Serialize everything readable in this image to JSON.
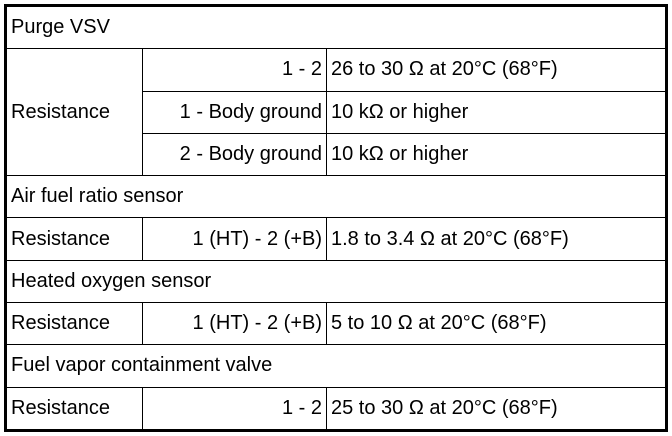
{
  "sections": [
    {
      "title": "Purge VSV",
      "label": "Resistance",
      "rows": [
        [
          "1 - 2",
          "26 to 30 Ω at 20°C (68°F)"
        ],
        [
          "1 - Body ground",
          "10 kΩ or higher"
        ],
        [
          "2 - Body ground",
          "10 kΩ or higher"
        ]
      ]
    },
    {
      "title": "Air fuel ratio sensor",
      "label": "Resistance",
      "rows": [
        [
          "1 (HT) - 2 (+B)",
          "1.8 to 3.4 Ω at 20°C (68°F)"
        ]
      ]
    },
    {
      "title": "Heated oxygen sensor",
      "label": "Resistance",
      "rows": [
        [
          "1 (HT) - 2 (+B)",
          "5 to 10 Ω at 20°C (68°F)"
        ]
      ]
    },
    {
      "title": "Fuel vapor containment valve",
      "label": "Resistance",
      "rows": [
        [
          "1 - 2",
          "25 to 30 Ω at 20°C (68°F)"
        ]
      ]
    }
  ]
}
